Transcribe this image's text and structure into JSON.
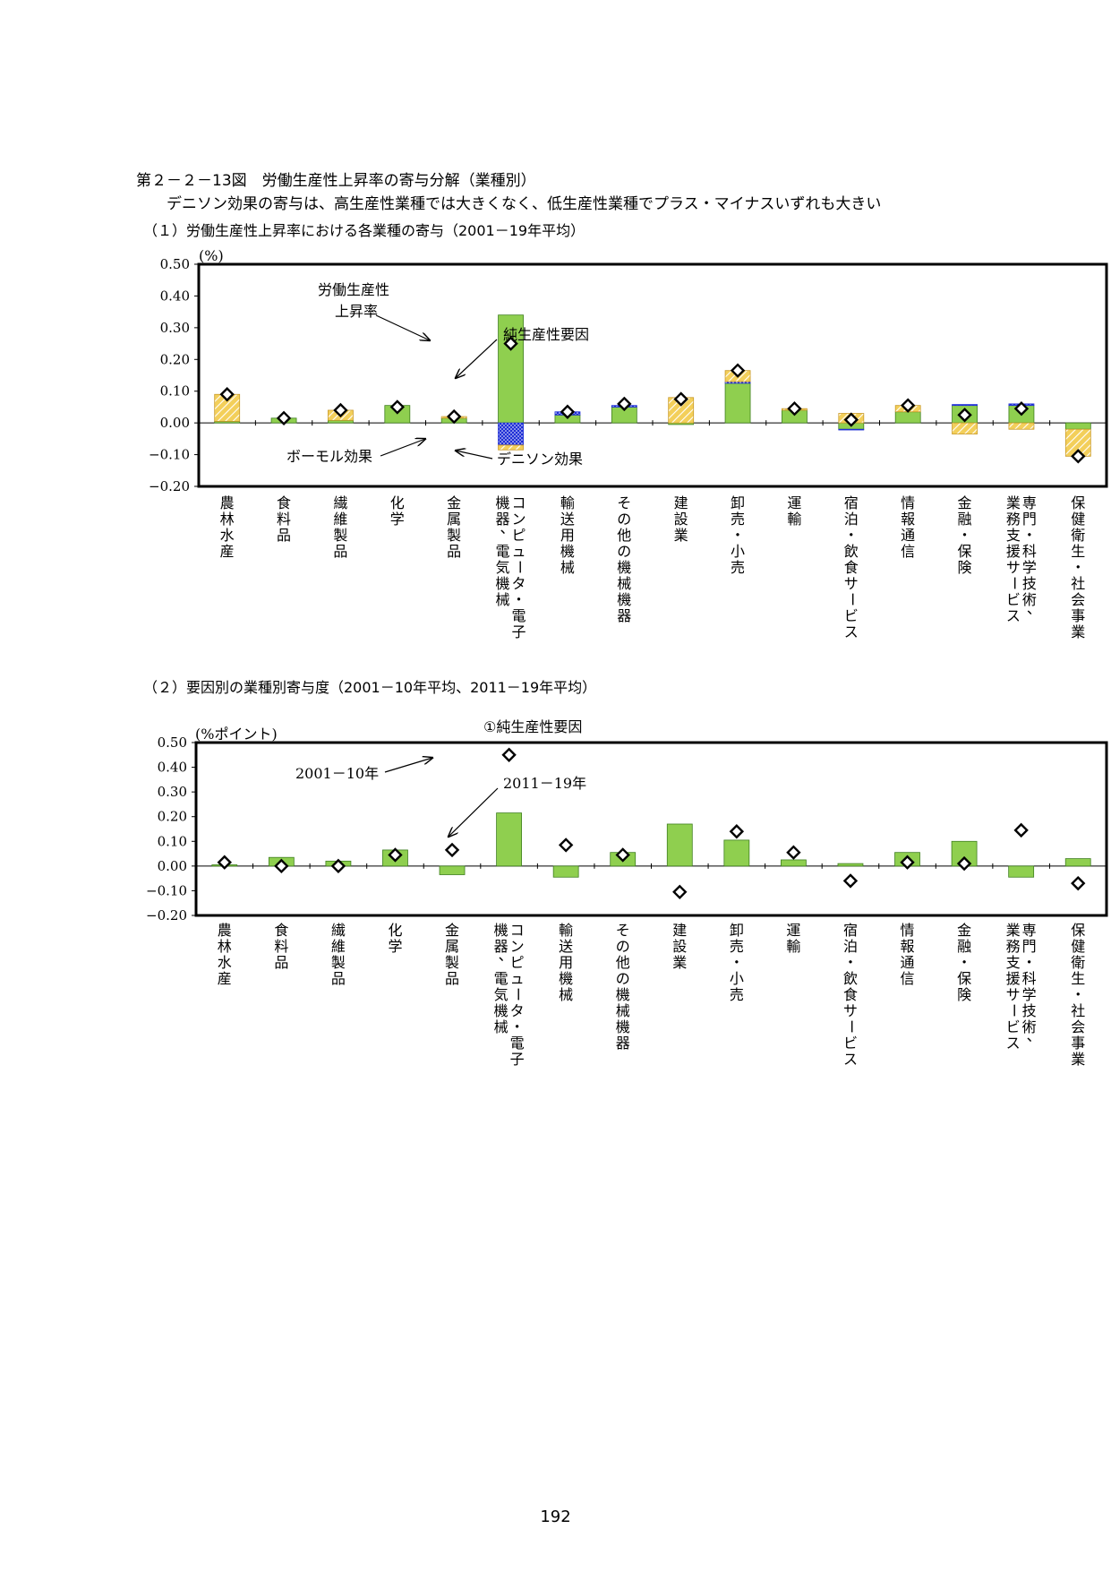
{
  "page": {
    "figure_title": "第２－２－13図　労働生産性上昇率の寄与分解（業種別）",
    "figure_subtitle": "デニソン効果の寄与は、高生産性業種では大きくなく、低生産性業種でプラス・マイナスいずれも大きい",
    "section1_title": "（１）労働生産性上昇率における各業種の寄与（2001－19年平均）",
    "section2_title": "（２）要因別の業種別寄与度（2001－10年平均、2011－19年平均）",
    "page_number": "192"
  },
  "colors": {
    "net_productivity": "#8fcf4f",
    "baumol": "#1f2fd6",
    "denison": "#f3cf5a",
    "marker_fill": "#ffffff",
    "axis": "#000000"
  },
  "chart_data": [
    {
      "type": "bar",
      "stacked": true,
      "unit": "(%)",
      "ylim": [
        -0.2,
        0.5
      ],
      "yticks": [
        "0.50",
        "0.40",
        "0.30",
        "0.20",
        "0.10",
        "0.00",
        "−0.10",
        "−0.20"
      ],
      "ytick_values": [
        0.5,
        0.4,
        0.3,
        0.2,
        0.1,
        0.0,
        -0.1,
        -0.2
      ],
      "categories": [
        "農林水産",
        "食料品",
        "繊維製品",
        "化学",
        "金属製品",
        "コンピュータ・電子機器、電気機械",
        "輸送用機械",
        "その他の機械機器",
        "建設業",
        "卸売・小売",
        "運輸",
        "宿泊・飲食サービス",
        "情報通信",
        "金融・保険",
        "専門・科学技術、業務支援サービス",
        "保健衛生・社会事業"
      ],
      "category_lines": [
        [
          "農林水産"
        ],
        [
          "食料品"
        ],
        [
          "繊維製品"
        ],
        [
          "化学"
        ],
        [
          "金属製品"
        ],
        [
          "コンピュータ・電子",
          "機器、電気機械"
        ],
        [
          "輸送用機械"
        ],
        [
          "その他の機械機器"
        ],
        [
          "建設業"
        ],
        [
          "卸売・小売"
        ],
        [
          "運輸"
        ],
        [
          "宿泊・飲食サービス"
        ],
        [
          "情報通信"
        ],
        [
          "金融・保険"
        ],
        [
          "専門・科学技術、",
          "業務支援サービス"
        ],
        [
          "保健衛生・社会事業"
        ]
      ],
      "series": [
        {
          "name": "純生産性要因",
          "values": [
            0.005,
            0.015,
            0.008,
            0.055,
            0.015,
            0.34,
            0.025,
            0.05,
            -0.005,
            0.125,
            0.04,
            -0.02,
            0.035,
            0.055,
            0.055,
            -0.02
          ]
        },
        {
          "name": "ボーモル効果",
          "values": [
            0.0,
            0.0,
            0.0,
            0.0,
            0.0,
            -0.07,
            0.01,
            0.005,
            0.0,
            0.005,
            0.0,
            -0.002,
            0.0,
            0.003,
            0.005,
            0.0
          ]
        },
        {
          "name": "デニソン効果",
          "values": [
            0.085,
            0.0,
            0.032,
            0.0,
            0.005,
            -0.015,
            0.0,
            0.0,
            0.08,
            0.035,
            0.005,
            0.03,
            0.02,
            -0.035,
            -0.02,
            -0.085
          ]
        }
      ],
      "marker_series": {
        "name": "労働生産性上昇率",
        "values": [
          0.09,
          0.015,
          0.04,
          0.05,
          0.02,
          0.25,
          0.035,
          0.06,
          0.075,
          0.165,
          0.045,
          0.01,
          0.055,
          0.025,
          0.045,
          -0.105
        ]
      },
      "annotations": {
        "labor_productivity": [
          "労働生産性",
          "上昇率"
        ],
        "net_productivity": "純生産性要因",
        "baumol": "ボーモル効果",
        "denison": "デニソン効果"
      }
    },
    {
      "type": "bar",
      "title": "①純生産性要因",
      "unit": "(%ポイント)",
      "ylim": [
        -0.2,
        0.5
      ],
      "yticks": [
        "0.50",
        "0.40",
        "0.30",
        "0.20",
        "0.10",
        "0.00",
        "−0.10",
        "−0.20"
      ],
      "ytick_values": [
        0.5,
        0.4,
        0.3,
        0.2,
        0.1,
        0.0,
        -0.1,
        -0.2
      ],
      "categories": [
        "農林水産",
        "食料品",
        "繊維製品",
        "化学",
        "金属製品",
        "コンピュータ・電子機器、電気機械",
        "輸送用機械",
        "その他の機械機器",
        "建設業",
        "卸売・小売",
        "運輸",
        "宿泊・飲食サービス",
        "情報通信",
        "金融・保険",
        "専門・科学技術、業務支援サービス",
        "保健衛生・社会事業"
      ],
      "category_lines": [
        [
          "農林水産"
        ],
        [
          "食料品"
        ],
        [
          "繊維製品"
        ],
        [
          "化学"
        ],
        [
          "金属製品"
        ],
        [
          "コンピュータ・電子",
          "機器、電気機械"
        ],
        [
          "輸送用機械"
        ],
        [
          "その他の機械機器"
        ],
        [
          "建設業"
        ],
        [
          "卸売・小売"
        ],
        [
          "運輸"
        ],
        [
          "宿泊・飲食サービス"
        ],
        [
          "情報通信"
        ],
        [
          "金融・保険"
        ],
        [
          "専門・科学技術、",
          "業務支援サービス"
        ],
        [
          "保健衛生・社会事業"
        ]
      ],
      "series": [
        {
          "name": "2011－19年",
          "values": [
            0.005,
            0.035,
            0.02,
            0.065,
            -0.035,
            0.215,
            -0.045,
            0.055,
            0.17,
            0.105,
            0.025,
            0.01,
            0.055,
            0.1,
            -0.045,
            0.03
          ]
        }
      ],
      "marker_series": {
        "name": "2001－10年",
        "values": [
          0.015,
          0.0,
          0.0,
          0.045,
          0.065,
          0.45,
          0.085,
          0.045,
          -0.105,
          0.14,
          0.055,
          -0.06,
          0.015,
          0.01,
          0.145,
          -0.07
        ]
      },
      "annotations": {
        "markers": "2001－10年",
        "bars": "2011－19年"
      }
    }
  ]
}
